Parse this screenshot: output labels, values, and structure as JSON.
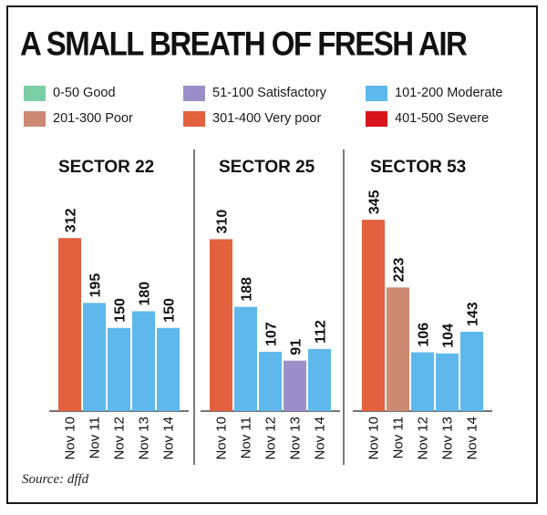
{
  "title": "A SMALL BREATH OF FRESH AIR",
  "source": "Source: dffd",
  "legend": [
    {
      "label": "0-50 Good",
      "color": "#7ccfa4"
    },
    {
      "label": "51-100 Satisfactory",
      "color": "#9b8fc9"
    },
    {
      "label": "101-200 Moderate",
      "color": "#5eb8ec"
    },
    {
      "label": "201-300 Poor",
      "color": "#cc8a73"
    },
    {
      "label": "301-400 Very poor",
      "color": "#e3613f"
    },
    {
      "label": "401-500 Severe",
      "color": "#d8151b"
    }
  ],
  "chart_data": [
    {
      "type": "bar",
      "title": "SECTOR 22",
      "categories": [
        "Nov 10",
        "Nov 11",
        "Nov 12",
        "Nov 13",
        "Nov 14"
      ],
      "values": [
        312,
        195,
        150,
        180,
        150
      ],
      "ylim": [
        0,
        360
      ]
    },
    {
      "type": "bar",
      "title": "SECTOR 25",
      "categories": [
        "Nov 10",
        "Nov 11",
        "Nov 12",
        "Nov 13",
        "Nov 14"
      ],
      "values": [
        310,
        188,
        107,
        91,
        112
      ],
      "ylim": [
        0,
        360
      ]
    },
    {
      "type": "bar",
      "title": "SECTOR 53",
      "categories": [
        "Nov 10",
        "Nov 11",
        "Nov 12",
        "Nov 13",
        "Nov 14"
      ],
      "values": [
        345,
        223,
        106,
        104,
        143
      ],
      "ylim": [
        0,
        360
      ]
    }
  ]
}
